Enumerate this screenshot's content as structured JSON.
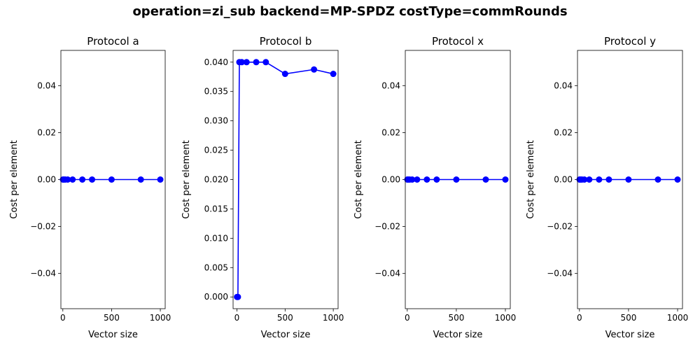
{
  "suptitle": "operation=zi_sub backend=MP-SPDZ costType=commRounds",
  "chart_data": [
    {
      "type": "line",
      "title": "Protocol a",
      "xlabel": "Vector size",
      "ylabel": "Cost per element",
      "xlim": [
        -20,
        1050
      ],
      "ylim": [
        -0.055,
        0.055
      ],
      "xticks": [
        0,
        500,
        1000
      ],
      "yticks": [
        -0.04,
        -0.02,
        0.0,
        0.02,
        0.04
      ],
      "ytick_labels": [
        "−0.04",
        "−0.02",
        "0.00",
        "0.02",
        "0.04"
      ],
      "grid": false,
      "color": "#0000ff",
      "x": [
        1,
        10,
        25,
        50,
        100,
        200,
        300,
        500,
        800,
        1000
      ],
      "y": [
        0,
        0,
        0,
        0,
        0,
        0,
        0,
        0,
        0,
        0
      ]
    },
    {
      "type": "line",
      "title": "Protocol b",
      "xlabel": "Vector size",
      "ylabel": "Cost per element",
      "xlim": [
        -40,
        1050
      ],
      "ylim": [
        -0.002,
        0.042
      ],
      "xticks": [
        0,
        500,
        1000
      ],
      "yticks": [
        0.0,
        0.005,
        0.01,
        0.015,
        0.02,
        0.025,
        0.03,
        0.035,
        0.04
      ],
      "ytick_labels": [
        "0.000",
        "0.005",
        "0.010",
        "0.015",
        "0.020",
        "0.025",
        "0.030",
        "0.035",
        "0.040"
      ],
      "grid": false,
      "color": "#0000ff",
      "x": [
        1,
        10,
        25,
        50,
        100,
        200,
        300,
        500,
        800,
        1000
      ],
      "y": [
        0.0,
        0.0,
        0.04,
        0.04,
        0.04,
        0.04,
        0.04,
        0.038,
        0.03875,
        0.038
      ]
    },
    {
      "type": "line",
      "title": "Protocol x",
      "xlabel": "Vector size",
      "ylabel": "Cost per element",
      "xlim": [
        -20,
        1050
      ],
      "ylim": [
        -0.055,
        0.055
      ],
      "xticks": [
        0,
        500,
        1000
      ],
      "yticks": [
        -0.04,
        -0.02,
        0.0,
        0.02,
        0.04
      ],
      "ytick_labels": [
        "−0.04",
        "−0.02",
        "0.00",
        "0.02",
        "0.04"
      ],
      "grid": false,
      "color": "#0000ff",
      "x": [
        1,
        10,
        25,
        50,
        100,
        200,
        300,
        500,
        800,
        1000
      ],
      "y": [
        0,
        0,
        0,
        0,
        0,
        0,
        0,
        0,
        0,
        0
      ]
    },
    {
      "type": "line",
      "title": "Protocol y",
      "xlabel": "Vector size",
      "ylabel": "Cost per element",
      "xlim": [
        -20,
        1050
      ],
      "ylim": [
        -0.055,
        0.055
      ],
      "xticks": [
        0,
        500,
        1000
      ],
      "yticks": [
        -0.04,
        -0.02,
        0.0,
        0.02,
        0.04
      ],
      "ytick_labels": [
        "−0.04",
        "−0.02",
        "0.00",
        "0.02",
        "0.04"
      ],
      "grid": false,
      "color": "#0000ff",
      "x": [
        1,
        10,
        25,
        50,
        100,
        200,
        300,
        500,
        800,
        1000
      ],
      "y": [
        0,
        0,
        0,
        0,
        0,
        0,
        0,
        0,
        0,
        0
      ]
    }
  ]
}
